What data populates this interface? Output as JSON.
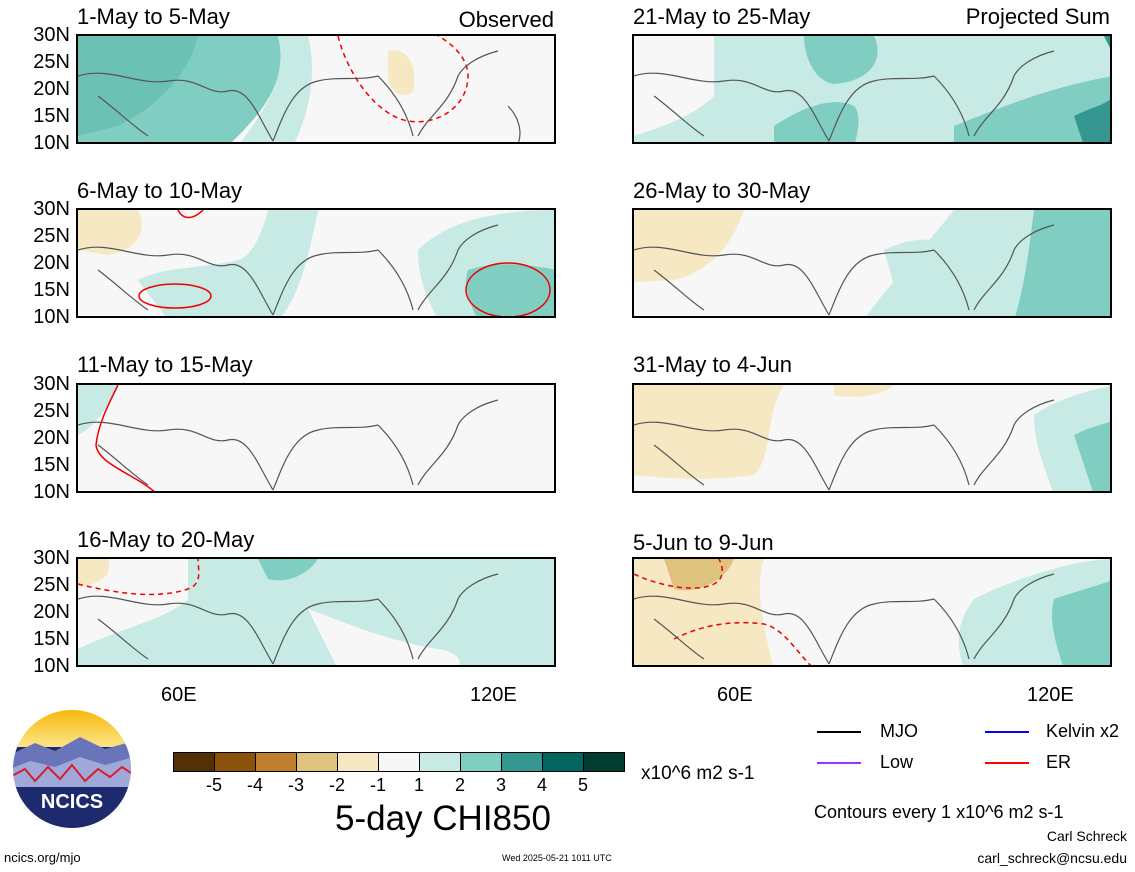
{
  "left_column_corner": "Observed",
  "right_column_corner": "Projected Sum",
  "panels_left": [
    {
      "title": "1-May to 5-May"
    },
    {
      "title": "6-May to 10-May"
    },
    {
      "title": "11-May to 15-May"
    },
    {
      "title": "16-May to 20-May"
    }
  ],
  "panels_right": [
    {
      "title": "21-May to 25-May"
    },
    {
      "title": "26-May to 30-May"
    },
    {
      "title": "31-May to 4-Jun"
    },
    {
      "title": "5-Jun to 9-Jun"
    }
  ],
  "lat_labels": [
    "30N",
    "25N",
    "20N",
    "15N",
    "10N"
  ],
  "lon_labels": [
    "60E",
    "120E"
  ],
  "colorbar": {
    "colors": [
      "#543005",
      "#8c510a",
      "#bf812d",
      "#dfc27d",
      "#f6e8c3",
      "#f7f7f7",
      "#c7eae5",
      "#80cdc1",
      "#35978f",
      "#01665e",
      "#003c30"
    ],
    "ticks": [
      "-5",
      "-4",
      "-3",
      "-2",
      "-1",
      "1",
      "2",
      "3",
      "4",
      "5"
    ],
    "units": "x10^6 m2 s-1",
    "title": "5-day CHI850"
  },
  "legend": [
    {
      "label": "MJO",
      "color": "#000000"
    },
    {
      "label": "Kelvin x2",
      "color": "#0000ff"
    },
    {
      "label": "Low",
      "color": "#9933ff"
    },
    {
      "label": "ER",
      "color": "#ff0000"
    }
  ],
  "contour_note": "Contours every 1 x10^6 m2 s-1",
  "author": "Carl Schreck",
  "email": "carl_schreck@ncsu.edu",
  "site": "ncics.org/mjo",
  "timestamp": "Wed 2025-05-21 1011 UTC",
  "logo_text": "NCICS"
}
